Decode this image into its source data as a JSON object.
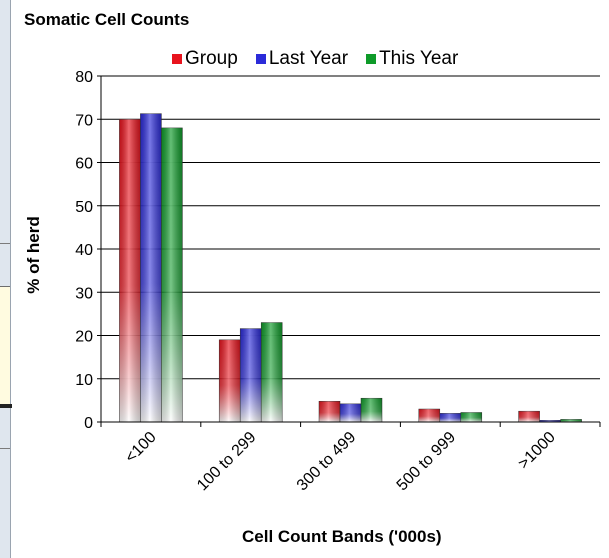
{
  "chart_data": {
    "type": "bar",
    "title": "Somatic Cell Counts",
    "xlabel": "Cell Count Bands ('000s)",
    "ylabel": "% of herd",
    "categories": [
      "<100",
      "100 to 299",
      "300 to 499",
      "500 to 999",
      ">1000"
    ],
    "series": [
      {
        "name": "Group",
        "values": [
          70,
          19,
          4.8,
          3,
          2.5
        ],
        "color": "#e8131d"
      },
      {
        "name": "Last Year",
        "values": [
          71.3,
          21.6,
          4.2,
          2,
          0.4
        ],
        "color": "#2b2bd9"
      },
      {
        "name": "This Year",
        "values": [
          68,
          23,
          5.5,
          2.2,
          0.6
        ],
        "color": "#0e9b29"
      }
    ],
    "ylim": [
      0,
      80
    ],
    "yticks": [
      0,
      10,
      20,
      30,
      40,
      50,
      60,
      70,
      80
    ],
    "grid": true,
    "legend_position": "top"
  }
}
